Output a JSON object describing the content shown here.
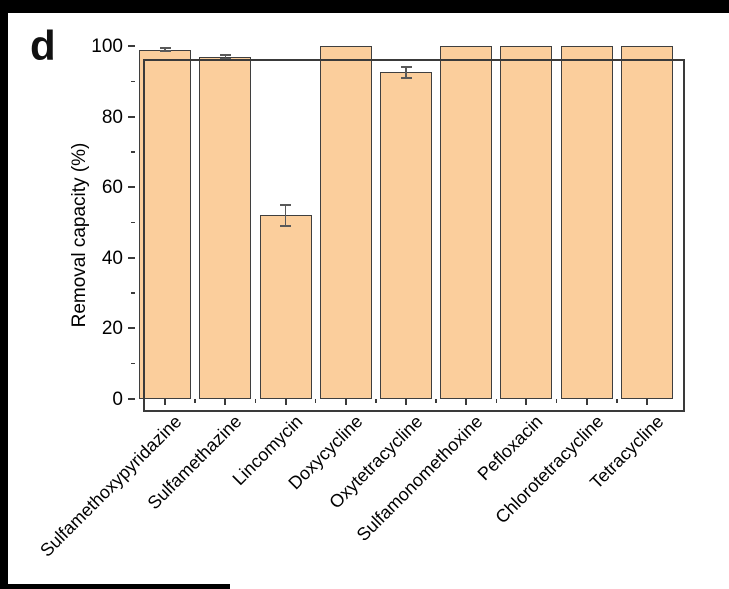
{
  "panel_label": "d",
  "colors": {
    "frame_bg": "#000000",
    "page_bg": "#FFFFFF",
    "bar_fill": "#FBCE9C",
    "bar_border": "#3F3F3F",
    "axis": "#3A3A3A",
    "error_bar": "#595959"
  },
  "chart_data": {
    "type": "bar",
    "title": "",
    "xlabel": "",
    "ylabel": "Removal capacity (%)",
    "ylim": [
      0,
      100
    ],
    "yticks": [
      0,
      20,
      40,
      60,
      80,
      100
    ],
    "yticks_minor": [
      10,
      30,
      50,
      70,
      90
    ],
    "grid": false,
    "legend_position": "none",
    "categories": [
      "Sulfamethoxypyridazine",
      "Sulfamethazine",
      "Lincomycin",
      "Doxycycline",
      "Oxytetracycline",
      "Sulfamonomethoxine",
      "Pefloxacin",
      "Chlorotetracycline",
      "Tetracycline"
    ],
    "values": [
      99,
      97,
      52,
      100,
      92.5,
      100,
      100,
      100,
      100
    ],
    "errors": [
      0.4,
      0.5,
      3,
      0,
      1.5,
      0,
      0,
      0,
      0
    ]
  }
}
